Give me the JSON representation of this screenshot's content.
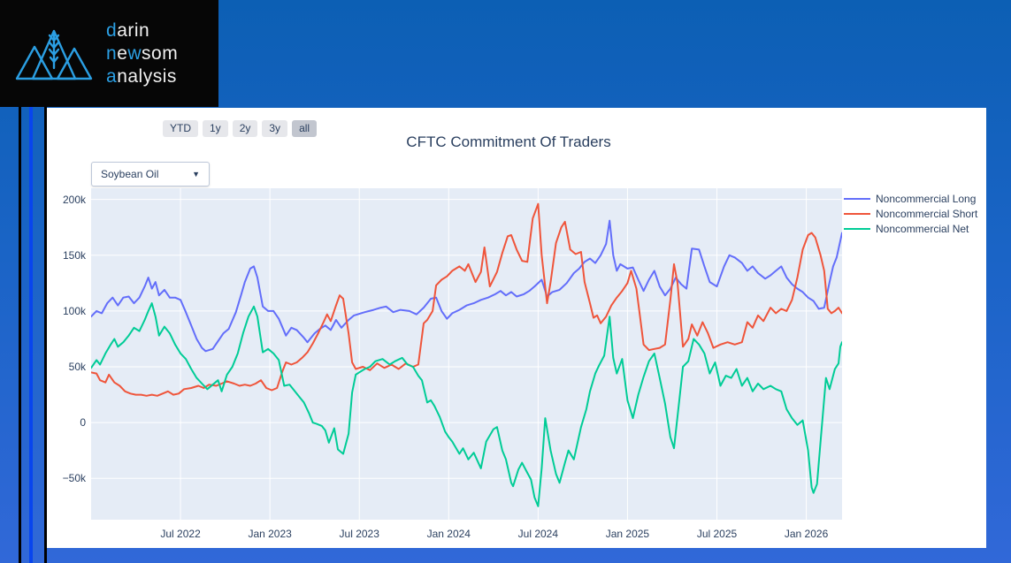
{
  "logo": {
    "accent_color": "#2b9fe3",
    "lines": [
      {
        "segments": [
          {
            "t": "d",
            "accent": true
          },
          {
            "t": "arin",
            "accent": false
          }
        ]
      },
      {
        "segments": [
          {
            "t": "n",
            "accent": true
          },
          {
            "t": "e",
            "accent": false
          },
          {
            "t": "w",
            "accent": true
          },
          {
            "t": "som",
            "accent": false
          }
        ]
      },
      {
        "segments": [
          {
            "t": "a",
            "accent": true
          },
          {
            "t": "nalysis",
            "accent": false
          }
        ]
      }
    ]
  },
  "toolbar": {
    "range_buttons": [
      {
        "label": "YTD",
        "active": false
      },
      {
        "label": "1y",
        "active": false
      },
      {
        "label": "2y",
        "active": false
      },
      {
        "label": "3y",
        "active": false
      },
      {
        "label": "all",
        "active": true
      }
    ]
  },
  "controls": {
    "instrument_dropdown": {
      "value": "Soybean Oil"
    }
  },
  "chart_data": {
    "type": "line",
    "title": "CFTC Commitment Of Traders",
    "unit": "contracts (thousands)",
    "plot_bg": "#e5ecf6",
    "grid_color": "#ffffff",
    "text_color": "#2a3f5f",
    "legend_position": "right-top",
    "grid": true,
    "xlim": [
      2022.0,
      2026.2
    ],
    "ylim": [
      -87,
      210
    ],
    "x_ticks": [
      {
        "v": 2022.5,
        "label": "Jul 2022"
      },
      {
        "v": 2023.0,
        "label": "Jan 2023"
      },
      {
        "v": 2023.5,
        "label": "Jul 2023"
      },
      {
        "v": 2024.0,
        "label": "Jan 2024"
      },
      {
        "v": 2024.5,
        "label": "Jul 2024"
      },
      {
        "v": 2025.0,
        "label": "Jan 2025"
      },
      {
        "v": 2025.5,
        "label": "Jul 2025"
      },
      {
        "v": 2026.0,
        "label": "Jan 2026"
      }
    ],
    "y_ticks": [
      {
        "v": 200,
        "label": "200k"
      },
      {
        "v": 150,
        "label": "150k"
      },
      {
        "v": 100,
        "label": "100k"
      },
      {
        "v": 50,
        "label": "50k"
      },
      {
        "v": 0,
        "label": "0"
      },
      {
        "v": -50,
        "label": "−50k"
      }
    ],
    "series": [
      {
        "name": "Noncommercial Long",
        "color": "#636efa",
        "x": [
          2022.0,
          2022.03,
          2022.06,
          2022.09,
          2022.12,
          2022.15,
          2022.18,
          2022.21,
          2022.24,
          2022.27,
          2022.3,
          2022.32,
          2022.34,
          2022.36,
          2022.38,
          2022.41,
          2022.44,
          2022.47,
          2022.5,
          2022.53,
          2022.56,
          2022.59,
          2022.62,
          2022.64,
          2022.68,
          2022.71,
          2022.74,
          2022.77,
          2022.81,
          2022.84,
          2022.86,
          2022.89,
          2022.91,
          2022.93,
          2022.96,
          2022.99,
          2023.02,
          2023.05,
          2023.09,
          2023.12,
          2023.15,
          2023.19,
          2023.21,
          2023.25,
          2023.28,
          2023.31,
          2023.34,
          2023.37,
          2023.4,
          2023.44,
          2023.47,
          2023.53,
          2023.58,
          2023.62,
          2023.65,
          2023.69,
          2023.73,
          2023.78,
          2023.82,
          2023.86,
          2023.9,
          2023.93,
          2023.96,
          2023.99,
          2024.02,
          2024.06,
          2024.1,
          2024.14,
          2024.18,
          2024.22,
          2024.26,
          2024.29,
          2024.32,
          2024.35,
          2024.38,
          2024.42,
          2024.45,
          2024.48,
          2024.52,
          2024.55,
          2024.58,
          2024.62,
          2024.66,
          2024.7,
          2024.73,
          2024.76,
          2024.79,
          2024.82,
          2024.85,
          2024.88,
          2024.9,
          2024.92,
          2024.94,
          2024.96,
          2025.0,
          2025.03,
          2025.06,
          2025.09,
          2025.12,
          2025.15,
          2025.18,
          2025.21,
          2025.24,
          2025.27,
          2025.3,
          2025.33,
          2025.36,
          2025.4,
          2025.43,
          2025.46,
          2025.5,
          2025.54,
          2025.57,
          2025.6,
          2025.64,
          2025.67,
          2025.7,
          2025.73,
          2025.77,
          2025.8,
          2025.83,
          2025.86,
          2025.89,
          2025.92,
          2025.95,
          2025.98,
          2026.01,
          2026.04,
          2026.07,
          2026.1,
          2026.13,
          2026.15,
          2026.17,
          2026.2
        ],
        "y": [
          95,
          100,
          98,
          107,
          112,
          105,
          112,
          113,
          107,
          112,
          122,
          130,
          120,
          126,
          114,
          119,
          112,
          112,
          110,
          99,
          87,
          75,
          67,
          64,
          66,
          73,
          80,
          84,
          99,
          115,
          126,
          138,
          140,
          130,
          104,
          100,
          100,
          93,
          78,
          85,
          83,
          76,
          72,
          80,
          84,
          87,
          83,
          92,
          85,
          92,
          96,
          99,
          101,
          103,
          104,
          99,
          101,
          100,
          97,
          103,
          111,
          112,
          100,
          93,
          98,
          101,
          105,
          107,
          110,
          112,
          115,
          118,
          114,
          117,
          113,
          115,
          118,
          122,
          128,
          113,
          117,
          119,
          125,
          134,
          138,
          144,
          147,
          143,
          150,
          160,
          181,
          150,
          136,
          142,
          138,
          139,
          128,
          118,
          128,
          136,
          122,
          114,
          120,
          130,
          124,
          120,
          156,
          155,
          140,
          126,
          122,
          140,
          150,
          148,
          143,
          136,
          140,
          134,
          129,
          132,
          136,
          140,
          130,
          124,
          120,
          117,
          112,
          109,
          102,
          103,
          126,
          140,
          148,
          170
        ]
      },
      {
        "name": "Noncommercial Short",
        "color": "#ef553b",
        "x": [
          2022.0,
          2022.03,
          2022.05,
          2022.08,
          2022.1,
          2022.13,
          2022.16,
          2022.19,
          2022.22,
          2022.25,
          2022.28,
          2022.31,
          2022.34,
          2022.37,
          2022.4,
          2022.43,
          2022.46,
          2022.49,
          2022.52,
          2022.56,
          2022.6,
          2022.63,
          2022.66,
          2022.7,
          2022.73,
          2022.76,
          2022.8,
          2022.83,
          2022.86,
          2022.89,
          2022.92,
          2022.95,
          2022.98,
          2023.01,
          2023.04,
          2023.07,
          2023.09,
          2023.12,
          2023.15,
          2023.18,
          2023.21,
          2023.24,
          2023.27,
          2023.3,
          2023.32,
          2023.34,
          2023.37,
          2023.39,
          2023.41,
          2023.44,
          2023.46,
          2023.48,
          2023.52,
          2023.56,
          2023.6,
          2023.64,
          2023.68,
          2023.72,
          2023.76,
          2023.8,
          2023.83,
          2023.86,
          2023.88,
          2023.91,
          2023.93,
          2023.96,
          2023.99,
          2024.02,
          2024.06,
          2024.09,
          2024.11,
          2024.15,
          2024.18,
          2024.2,
          2024.23,
          2024.27,
          2024.3,
          2024.33,
          2024.35,
          2024.38,
          2024.41,
          2024.44,
          2024.47,
          2024.5,
          2024.52,
          2024.55,
          2024.57,
          2024.6,
          2024.63,
          2024.65,
          2024.68,
          2024.71,
          2024.74,
          2024.76,
          2024.79,
          2024.81,
          2024.83,
          2024.85,
          2024.88,
          2024.91,
          2024.94,
          2024.97,
          2025.0,
          2025.02,
          2025.05,
          2025.07,
          2025.09,
          2025.12,
          2025.15,
          2025.18,
          2025.21,
          2025.24,
          2025.26,
          2025.28,
          2025.31,
          2025.34,
          2025.36,
          2025.39,
          2025.42,
          2025.45,
          2025.48,
          2025.52,
          2025.56,
          2025.6,
          2025.64,
          2025.67,
          2025.7,
          2025.73,
          2025.76,
          2025.8,
          2025.83,
          2025.86,
          2025.89,
          2025.92,
          2025.95,
          2025.98,
          2026.01,
          2026.03,
          2026.05,
          2026.08,
          2026.1,
          2026.12,
          2026.14,
          2026.16,
          2026.18,
          2026.2
        ],
        "y": [
          45,
          44,
          38,
          36,
          43,
          36,
          33,
          28,
          26,
          25,
          25,
          24,
          25,
          24,
          26,
          28,
          25,
          26,
          30,
          31,
          33,
          31,
          34,
          33,
          35,
          37,
          35,
          33,
          34,
          33,
          35,
          38,
          31,
          29,
          31,
          46,
          54,
          52,
          54,
          58,
          63,
          71,
          80,
          90,
          97,
          91,
          105,
          114,
          111,
          80,
          54,
          48,
          50,
          47,
          53,
          49,
          52,
          48,
          53,
          50,
          52,
          89,
          92,
          100,
          123,
          128,
          131,
          136,
          140,
          136,
          142,
          126,
          135,
          157,
          122,
          135,
          152,
          167,
          168,
          155,
          145,
          144,
          183,
          196,
          150,
          107,
          126,
          161,
          175,
          180,
          155,
          151,
          153,
          126,
          107,
          94,
          96,
          89,
          95,
          105,
          112,
          118,
          125,
          136,
          120,
          95,
          70,
          65,
          66,
          67,
          70,
          110,
          142,
          125,
          68,
          75,
          88,
          78,
          90,
          80,
          67,
          70,
          72,
          70,
          72,
          90,
          85,
          96,
          91,
          103,
          98,
          102,
          100,
          110,
          130,
          155,
          168,
          170,
          166,
          150,
          136,
          102,
          98,
          100,
          103,
          98
        ]
      },
      {
        "name": "Noncommercial Net",
        "color": "#00cc96",
        "x": [
          2022.0,
          2022.03,
          2022.05,
          2022.08,
          2022.11,
          2022.13,
          2022.15,
          2022.18,
          2022.21,
          2022.24,
          2022.27,
          2022.3,
          2022.32,
          2022.34,
          2022.36,
          2022.38,
          2022.41,
          2022.44,
          2022.47,
          2022.5,
          2022.53,
          2022.56,
          2022.59,
          2022.62,
          2022.65,
          2022.68,
          2022.71,
          2022.73,
          2022.76,
          2022.79,
          2022.82,
          2022.85,
          2022.88,
          2022.91,
          2022.93,
          2022.96,
          2022.99,
          2023.02,
          2023.05,
          2023.08,
          2023.11,
          2023.14,
          2023.17,
          2023.19,
          2023.22,
          2023.24,
          2023.26,
          2023.29,
          2023.31,
          2023.33,
          2023.36,
          2023.38,
          2023.41,
          2023.44,
          2023.46,
          2023.48,
          2023.5,
          2023.53,
          2023.56,
          2023.59,
          2023.63,
          2023.67,
          2023.7,
          2023.74,
          2023.77,
          2023.8,
          2023.83,
          2023.85,
          2023.88,
          2023.9,
          2023.92,
          2023.95,
          2023.98,
          2024.0,
          2024.02,
          2024.06,
          2024.08,
          2024.11,
          2024.14,
          2024.18,
          2024.21,
          2024.25,
          2024.27,
          2024.3,
          2024.32,
          2024.35,
          2024.36,
          2024.39,
          2024.41,
          2024.44,
          2024.46,
          2024.48,
          2024.5,
          2024.52,
          2024.54,
          2024.57,
          2024.6,
          2024.62,
          2024.65,
          2024.67,
          2024.7,
          2024.74,
          2024.77,
          2024.79,
          2024.82,
          2024.84,
          2024.87,
          2024.9,
          2024.92,
          2024.94,
          2024.97,
          2025.0,
          2025.03,
          2025.06,
          2025.09,
          2025.12,
          2025.15,
          2025.18,
          2025.21,
          2025.24,
          2025.26,
          2025.29,
          2025.31,
          2025.34,
          2025.37,
          2025.4,
          2025.43,
          2025.46,
          2025.49,
          2025.52,
          2025.55,
          2025.58,
          2025.61,
          2025.64,
          2025.67,
          2025.7,
          2025.73,
          2025.76,
          2025.8,
          2025.83,
          2025.86,
          2025.89,
          2025.92,
          2025.95,
          2025.98,
          2026.01,
          2026.03,
          2026.04,
          2026.06,
          2026.08,
          2026.11,
          2026.13,
          2026.16,
          2026.18,
          2026.19,
          2026.2
        ],
        "y": [
          49,
          56,
          52,
          62,
          70,
          75,
          68,
          72,
          78,
          85,
          82,
          92,
          100,
          107,
          95,
          78,
          86,
          80,
          70,
          62,
          57,
          48,
          40,
          35,
          30,
          34,
          38,
          28,
          43,
          50,
          62,
          80,
          95,
          104,
          95,
          63,
          66,
          62,
          56,
          33,
          34,
          28,
          22,
          18,
          8,
          0,
          -1,
          -3,
          -7,
          -18,
          -5,
          -24,
          -28,
          -10,
          27,
          43,
          45,
          48,
          50,
          55,
          57,
          52,
          55,
          58,
          52,
          50,
          42,
          38,
          18,
          20,
          15,
          5,
          -8,
          -13,
          -17,
          -28,
          -23,
          -33,
          -27,
          -41,
          -17,
          -6,
          -4,
          -25,
          -33,
          -54,
          -57,
          -42,
          -36,
          -45,
          -51,
          -67,
          -75,
          -41,
          4,
          -25,
          -46,
          -54,
          -36,
          -25,
          -33,
          -4,
          12,
          28,
          44,
          51,
          60,
          95,
          58,
          44,
          57,
          20,
          4,
          25,
          41,
          55,
          62,
          40,
          17,
          -13,
          -23,
          20,
          50,
          55,
          75,
          70,
          62,
          44,
          54,
          33,
          42,
          40,
          48,
          33,
          40,
          28,
          35,
          30,
          33,
          30,
          28,
          12,
          4,
          -2,
          2,
          -25,
          -58,
          -63,
          -55,
          -17,
          40,
          30,
          48,
          53,
          68,
          72
        ]
      }
    ]
  }
}
